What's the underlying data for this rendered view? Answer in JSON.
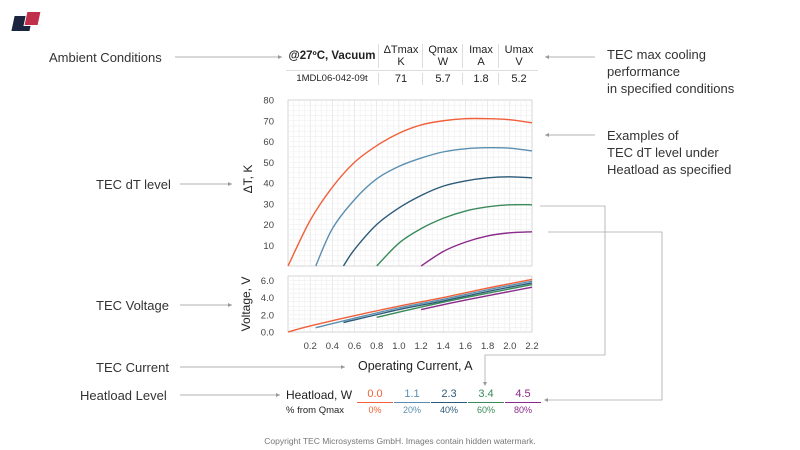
{
  "logo": {
    "text": "",
    "colors": [
      "#1b2540",
      "#c0304a"
    ]
  },
  "annotations": {
    "left": [
      "Ambient Conditions",
      "TEC dT level",
      "TEC Voltage",
      "TEC Current",
      "Heatload Level"
    ],
    "right_max": [
      "TEC max cooling",
      "performance",
      "in specified conditions"
    ],
    "right_examples": [
      "Examples of",
      "TEC dT level under",
      "Heatload as specified"
    ]
  },
  "spec_table": {
    "condition": "@27ºC, Vacuum",
    "headers": [
      [
        "ΔTmax",
        "K"
      ],
      [
        "Qmax",
        "W"
      ],
      [
        "Imax",
        "A"
      ],
      [
        "Umax",
        "V"
      ]
    ],
    "model": "1MDL06-042-09t",
    "values": [
      "71",
      "5.7",
      "1.8",
      "5.2"
    ]
  },
  "heatload": {
    "label": "Heatload, W",
    "pct_label": "% from Qmax",
    "items": [
      {
        "w": "0.0",
        "pct": "0%",
        "color": "#f0603a"
      },
      {
        "w": "1.1",
        "pct": "20%",
        "color": "#5b8fb0"
      },
      {
        "w": "2.3",
        "pct": "40%",
        "color": "#2c5a78"
      },
      {
        "w": "3.4",
        "pct": "60%",
        "color": "#3a8a5a"
      },
      {
        "w": "4.5",
        "pct": "80%",
        "color": "#8a2a8a"
      }
    ]
  },
  "footer": "Copyright TEC Microsystems GmbH. Images contain hidden watermark.",
  "chart_data": [
    {
      "type": "line",
      "ylabel": "ΔT, K",
      "ylim": [
        0,
        80
      ],
      "yticks": [
        "10",
        "20",
        "30",
        "40",
        "50",
        "60",
        "70",
        "80"
      ],
      "xlim": [
        0,
        2.2
      ],
      "grid": true,
      "series": [
        {
          "color": "#f0603a",
          "points": [
            [
              0,
              0
            ],
            [
              0.2,
              22
            ],
            [
              0.4,
              38
            ],
            [
              0.6,
              50
            ],
            [
              0.8,
              58
            ],
            [
              1.0,
              64
            ],
            [
              1.2,
              68
            ],
            [
              1.4,
              70
            ],
            [
              1.6,
              71
            ],
            [
              1.8,
              71
            ],
            [
              2.0,
              70.5
            ],
            [
              2.2,
              69
            ]
          ]
        },
        {
          "color": "#5b8fb0",
          "points": [
            [
              0.25,
              0
            ],
            [
              0.4,
              18
            ],
            [
              0.6,
              32
            ],
            [
              0.8,
              42
            ],
            [
              1.0,
              48
            ],
            [
              1.2,
              52
            ],
            [
              1.4,
              55
            ],
            [
              1.6,
              56.5
            ],
            [
              1.8,
              57
            ],
            [
              2.0,
              56.8
            ],
            [
              2.2,
              55.5
            ]
          ]
        },
        {
          "color": "#2c5a78",
          "points": [
            [
              0.5,
              0
            ],
            [
              0.6,
              8
            ],
            [
              0.8,
              20
            ],
            [
              1.0,
              28
            ],
            [
              1.2,
              34
            ],
            [
              1.4,
              38.5
            ],
            [
              1.6,
              41
            ],
            [
              1.8,
              42.5
            ],
            [
              2.0,
              43
            ],
            [
              2.2,
              42.5
            ]
          ]
        },
        {
          "color": "#3a8a5a",
          "points": [
            [
              0.8,
              0
            ],
            [
              1.0,
              11
            ],
            [
              1.2,
              18
            ],
            [
              1.4,
              23
            ],
            [
              1.6,
              26.5
            ],
            [
              1.8,
              28.5
            ],
            [
              2.0,
              29.5
            ],
            [
              2.2,
              29.5
            ]
          ]
        },
        {
          "color": "#8a2a8a",
          "points": [
            [
              1.2,
              0
            ],
            [
              1.4,
              7
            ],
            [
              1.6,
              11.5
            ],
            [
              1.8,
              14.5
            ],
            [
              2.0,
              16
            ],
            [
              2.2,
              16.5
            ]
          ]
        }
      ]
    },
    {
      "type": "line",
      "ylabel": "Voltage, V",
      "xlabel": "Operating Current, A",
      "ylim": [
        0,
        6.5
      ],
      "yticks": [
        "0.0",
        "2.0",
        "4.0",
        "6.0"
      ],
      "xlim": [
        0,
        2.2
      ],
      "xticks": [
        "0.2",
        "0.4",
        "0.6",
        "0.8",
        "1.0",
        "1.2",
        "1.4",
        "1.6",
        "1.8",
        "2.0",
        "2.2"
      ],
      "grid": true,
      "series": [
        {
          "color": "#f0603a",
          "points": [
            [
              0,
              0
            ],
            [
              0.2,
              0.7
            ],
            [
              0.6,
              1.9
            ],
            [
              1.0,
              3.0
            ],
            [
              1.4,
              4.0
            ],
            [
              1.8,
              5.1
            ],
            [
              2.2,
              6.1
            ]
          ]
        },
        {
          "color": "#5b8fb0",
          "points": [
            [
              0.25,
              0.5
            ],
            [
              0.6,
              1.6
            ],
            [
              1.0,
              2.8
            ],
            [
              1.4,
              3.8
            ],
            [
              1.8,
              4.9
            ],
            [
              2.2,
              5.9
            ]
          ]
        },
        {
          "color": "#2c5a78",
          "points": [
            [
              0.5,
              1.1
            ],
            [
              1.0,
              2.6
            ],
            [
              1.4,
              3.6
            ],
            [
              1.8,
              4.7
            ],
            [
              2.2,
              5.7
            ]
          ]
        },
        {
          "color": "#3a8a5a",
          "points": [
            [
              0.8,
              1.7
            ],
            [
              1.2,
              2.9
            ],
            [
              1.6,
              4.0
            ],
            [
              2.2,
              5.5
            ]
          ]
        },
        {
          "color": "#8a2a8a",
          "points": [
            [
              1.2,
              2.6
            ],
            [
              1.6,
              3.7
            ],
            [
              2.2,
              5.2
            ]
          ]
        }
      ]
    }
  ]
}
